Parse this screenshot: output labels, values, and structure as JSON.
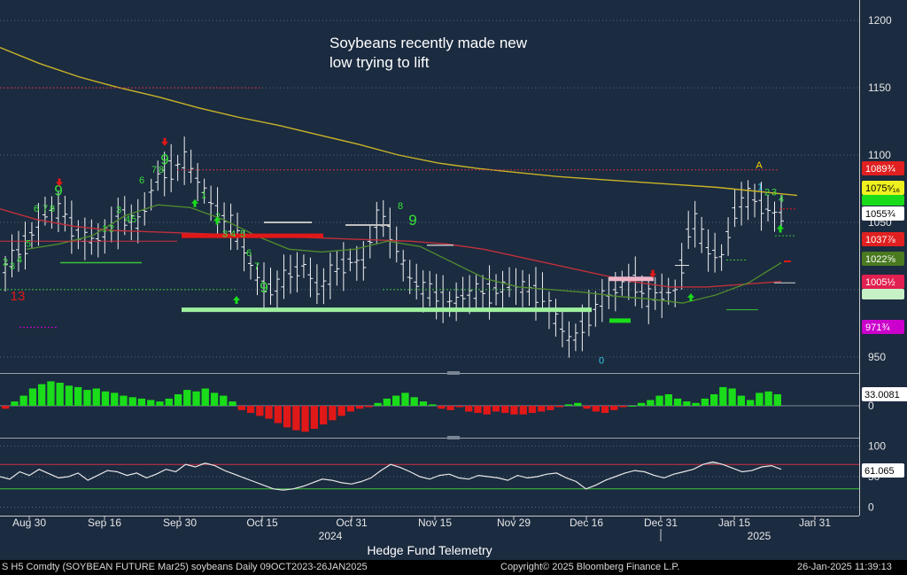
{
  "chart_data": [
    {
      "type": "candlestick",
      "title": "",
      "annotation": "Soybeans recently made new\nlow trying to lift",
      "ylim": [
        940,
        1210
      ],
      "y_ticks": [
        950,
        1000,
        1050,
        1100,
        1150,
        1200
      ],
      "grid": true,
      "legend": "none",
      "price_path": [
        1015,
        1030,
        1045,
        1060,
        1055,
        1040,
        1035,
        1045,
        1055,
        1048,
        1080,
        1090,
        1095,
        1080,
        1060,
        1050,
        1030,
        1005,
        1000,
        1010,
        1018,
        1000,
        1012,
        1022,
        1020,
        1055,
        1040,
        1010,
        1000,
        995,
        990,
        997,
        998,
        1000,
        1003,
        1000,
        997,
        975,
        960,
        980,
        992,
        1000,
        1010,
        992,
        996,
        1000,
        1055,
        1030,
        1025,
        1062,
        1068,
        1060,
        1055
      ],
      "moving_averages": [
        {
          "color": "#c9b428",
          "values": [
            1180,
            1168,
            1158,
            1150,
            1143,
            1135,
            1128,
            1122,
            1115,
            1108,
            1100,
            1094,
            1090,
            1087,
            1084,
            1082,
            1080,
            1078,
            1076,
            1073,
            1070
          ]
        },
        {
          "color": "#c0303a",
          "values": [
            1060,
            1052,
            1047,
            1044,
            1043,
            1042,
            1041,
            1040,
            1039,
            1038,
            1037,
            1036,
            1034,
            1030,
            1024,
            1018,
            1012,
            1006,
            1002,
            1002,
            1004,
            1006
          ]
        },
        {
          "color": "#4f8a2f",
          "values": [
            1030,
            1034,
            1040,
            1055,
            1063,
            1061,
            1052,
            1040,
            1030,
            1028,
            1030,
            1036,
            1032,
            1020,
            1008,
            1002,
            1000,
            998,
            995,
            993,
            990,
            996,
            1005,
            1020
          ]
        }
      ],
      "price_labels": [
        {
          "text": "1089¾",
          "value": 1089,
          "bg": "#e02020",
          "fg": "#ffffff"
        },
        {
          "text": "1075⁵⁄₁₆",
          "value": 1075,
          "bg": "#f0f020",
          "fg": "#000000"
        },
        {
          "text": "1055¾",
          "value": 1055,
          "bg": "#ffffff",
          "fg": "#000000"
        },
        {
          "text": "1037⅞",
          "value": 1037,
          "bg": "#e02020",
          "fg": "#ffffff"
        },
        {
          "text": "1022⅝",
          "value": 1022,
          "bg": "#4a7a20",
          "fg": "#ffffff"
        },
        {
          "text": "1005½",
          "value": 1005,
          "bg": "#e02050",
          "fg": "#ffffff"
        },
        {
          "text": "971¾",
          "value": 971,
          "bg": "#cc00cc",
          "fg": "#ffffff"
        }
      ],
      "sequential_counts": [
        "2",
        "3",
        "4",
        "5",
        "6",
        "7",
        "8",
        "9",
        "13",
        "1",
        "2",
        "3",
        "4",
        "5",
        "6",
        "7",
        "8",
        "9",
        "9",
        "1",
        "2",
        "3",
        "4",
        "5",
        "6",
        "7",
        "8",
        "9",
        "0",
        "1",
        "2",
        "3",
        "4",
        "A"
      ]
    },
    {
      "type": "bar",
      "title": "",
      "current_value": 33.0081,
      "current_label": "33.0081",
      "y_ticks": [
        0
      ],
      "ylim": [
        -40,
        40
      ],
      "values": [
        -4,
        6,
        14,
        24,
        30,
        34,
        32,
        28,
        26,
        22,
        24,
        20,
        18,
        14,
        12,
        10,
        8,
        6,
        10,
        16,
        22,
        20,
        24,
        18,
        14,
        6,
        -6,
        -10,
        -14,
        -18,
        -24,
        -30,
        -34,
        -36,
        -32,
        -26,
        -20,
        -14,
        -8,
        -4,
        -2,
        4,
        10,
        14,
        18,
        12,
        6,
        2,
        -4,
        -6,
        -2,
        -8,
        -10,
        -12,
        -8,
        -10,
        -12,
        -12,
        -10,
        -8,
        -6,
        -2,
        2,
        4,
        -4,
        -8,
        -10,
        -6,
        -2,
        0,
        4,
        8,
        14,
        16,
        10,
        6,
        4,
        10,
        16,
        26,
        24,
        14,
        8,
        18,
        20,
        16
      ]
    },
    {
      "type": "line",
      "title": "",
      "current_value": 61.065,
      "current_label": "61.065",
      "y_ticks": [
        0,
        50,
        100
      ],
      "ylim": [
        -8,
        108
      ],
      "reference_lines": [
        70,
        30
      ],
      "values": [
        50,
        46,
        58,
        52,
        62,
        55,
        48,
        50,
        56,
        44,
        52,
        60,
        58,
        52,
        56,
        48,
        54,
        62,
        58,
        70,
        66,
        72,
        68,
        60,
        54,
        48,
        42,
        36,
        30,
        28,
        30,
        34,
        40,
        46,
        44,
        40,
        38,
        42,
        48,
        60,
        70,
        65,
        58,
        50,
        46,
        52,
        54,
        48,
        46,
        52,
        50,
        48,
        44,
        52,
        48,
        50,
        54,
        56,
        48,
        42,
        30,
        36,
        44,
        50,
        56,
        60,
        58,
        52,
        48,
        54,
        58,
        62,
        70,
        74,
        70,
        64,
        58,
        60,
        66,
        68,
        62
      ]
    }
  ],
  "x_axis": {
    "ticks": [
      "Aug 30",
      "Sep 16",
      "Sep 30",
      "Oct 15",
      "Oct 31",
      "Nov 15",
      "Nov 29",
      "Dec 16",
      "Dec 31",
      "Jan 15",
      "Jan 31"
    ],
    "years": [
      "2024",
      "2025"
    ]
  },
  "brand": "Hedge Fund Telemetry",
  "footer": {
    "security": "S H5 Comdty (SOYBEAN FUTURE    Mar25) soybeans  Daily 09OCT2023-26JAN2025",
    "copyright": "Copyright© 2025 Bloomberg Finance L.P.",
    "timestamp": "26-Jan-2025 11:39:13"
  },
  "colors": {
    "background": "#1b2b40",
    "grid": "#56657a",
    "up": "#1adc1a",
    "down": "#e01818",
    "count": "#39e039",
    "accent": "#ffd000"
  }
}
